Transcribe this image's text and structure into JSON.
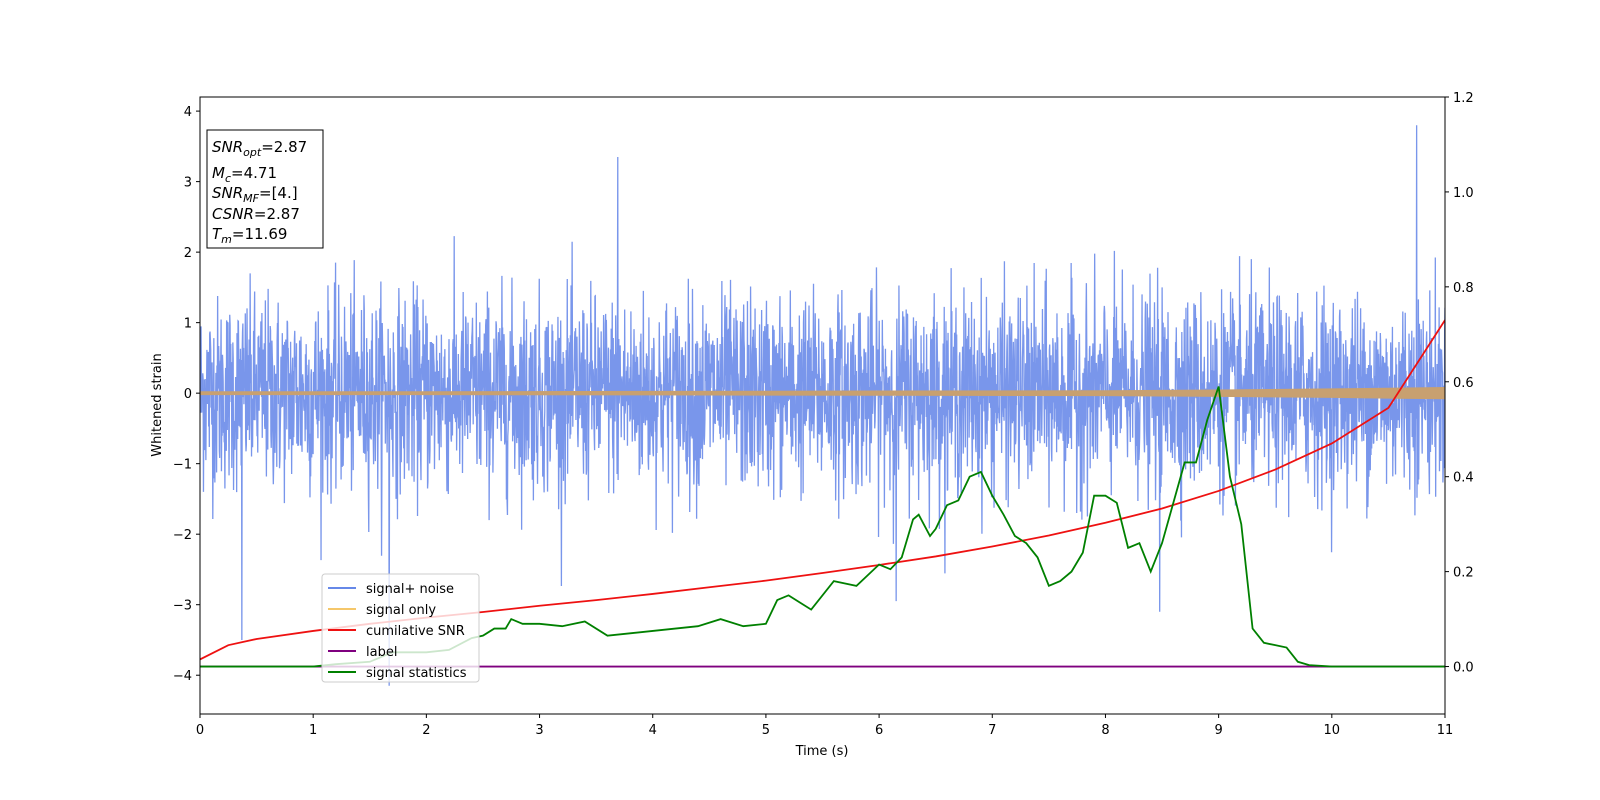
{
  "chart_data": {
    "type": "line",
    "xlabel": "Time (s)",
    "ylabel": "Whitened strain",
    "xlim": [
      0,
      11
    ],
    "ylim": [
      -4.55,
      4.2
    ],
    "y2lim": [
      -0.1,
      1.2
    ],
    "xticks": [
      0,
      1,
      2,
      3,
      4,
      5,
      6,
      7,
      8,
      9,
      10,
      11
    ],
    "yticks": [
      -4,
      -3,
      -2,
      -1,
      0,
      1,
      2,
      3,
      4
    ],
    "y2ticks": [
      0.0,
      0.2,
      0.4,
      0.6,
      0.8,
      1.0,
      1.2
    ],
    "xtick_labels": [
      "0",
      "1",
      "2",
      "3",
      "4",
      "5",
      "6",
      "7",
      "8",
      "9",
      "10",
      "11"
    ],
    "ytick_labels": [
      "−4",
      "−3",
      "−2",
      "−1",
      "0",
      "1",
      "2",
      "3",
      "4"
    ],
    "y2tick_labels": [
      "0.0",
      "0.2",
      "0.4",
      "0.6",
      "0.8",
      "1.0",
      "1.2"
    ],
    "info_box": {
      "snr_opt": "=2.87",
      "mc": "=4.71",
      "snr_mf": "=[4.]",
      "csnr": "=2.87",
      "tm": "=11.69"
    },
    "legend_position": "lower-left",
    "series": [
      {
        "name": "signal+ noise",
        "color": "#6688e8",
        "axis": "left",
        "description_values": "dense noise, approx. symmetric about 0",
        "peaks": [
          {
            "x": 0.37,
            "y": -3.5
          },
          {
            "x": 1.67,
            "y": -4.15
          },
          {
            "x": 3.69,
            "y": 3.35
          },
          {
            "x": 10.75,
            "y": 3.8
          },
          {
            "x": 8.48,
            "y": -3.1
          },
          {
            "x": 6.15,
            "y": -2.95
          }
        ],
        "envelope_upper": 2.1,
        "envelope_lower": -2.1
      },
      {
        "name": "signal only",
        "color": "#f5c76a",
        "axis": "left",
        "x": [
          0,
          2,
          4,
          6,
          8,
          9,
          10,
          10.5,
          11
        ],
        "amplitude": [
          0.02,
          0.02,
          0.025,
          0.03,
          0.035,
          0.045,
          0.06,
          0.07,
          0.08
        ]
      },
      {
        "name": "cumilative SNR",
        "color": "#ee1111",
        "axis": "right",
        "x": [
          0,
          0.25,
          0.5,
          1,
          1.5,
          2,
          2.5,
          3,
          3.5,
          4,
          4.5,
          5,
          5.5,
          6,
          6.5,
          7,
          7.5,
          8,
          8.5,
          9,
          9.5,
          10,
          10.5,
          11
        ],
        "values": [
          0.015,
          0.045,
          0.058,
          0.075,
          0.09,
          0.103,
          0.115,
          0.128,
          0.14,
          0.153,
          0.167,
          0.181,
          0.197,
          0.214,
          0.232,
          0.253,
          0.276,
          0.303,
          0.333,
          0.37,
          0.415,
          0.47,
          0.545,
          0.73
        ]
      },
      {
        "name": "label",
        "color": "#7f007f",
        "axis": "right",
        "x": [
          0,
          11
        ],
        "values": [
          0.0,
          0.0
        ]
      },
      {
        "name": "signal statistics",
        "color": "#008000",
        "axis": "right",
        "x": [
          0,
          1,
          1.2,
          1.5,
          1.7,
          2.0,
          2.2,
          2.4,
          2.5,
          2.6,
          2.7,
          2.75,
          2.85,
          3.0,
          3.2,
          3.4,
          3.6,
          3.8,
          4.0,
          4.2,
          4.4,
          4.6,
          4.8,
          5.0,
          5.1,
          5.2,
          5.3,
          5.4,
          5.6,
          5.8,
          6.0,
          6.1,
          6.2,
          6.3,
          6.35,
          6.45,
          6.5,
          6.6,
          6.7,
          6.8,
          6.9,
          7.0,
          7.1,
          7.2,
          7.3,
          7.4,
          7.5,
          7.6,
          7.7,
          7.8,
          7.9,
          8.0,
          8.1,
          8.2,
          8.3,
          8.4,
          8.5,
          8.6,
          8.7,
          8.8,
          8.9,
          9.0,
          9.1,
          9.2,
          9.3,
          9.4,
          9.5,
          9.6,
          9.7,
          9.8,
          10.0,
          10.5,
          11.0
        ],
        "values": [
          0.0,
          0.0,
          0.005,
          0.01,
          0.03,
          0.03,
          0.035,
          0.06,
          0.065,
          0.08,
          0.08,
          0.1,
          0.09,
          0.09,
          0.085,
          0.095,
          0.065,
          0.07,
          0.075,
          0.08,
          0.085,
          0.1,
          0.085,
          0.09,
          0.14,
          0.15,
          0.135,
          0.12,
          0.18,
          0.17,
          0.215,
          0.205,
          0.23,
          0.31,
          0.32,
          0.275,
          0.29,
          0.34,
          0.35,
          0.4,
          0.41,
          0.36,
          0.32,
          0.275,
          0.26,
          0.23,
          0.17,
          0.18,
          0.2,
          0.24,
          0.36,
          0.36,
          0.345,
          0.25,
          0.26,
          0.2,
          0.26,
          0.345,
          0.43,
          0.43,
          0.52,
          0.59,
          0.4,
          0.3,
          0.08,
          0.05,
          0.045,
          0.04,
          0.01,
          0.003,
          0.0,
          0.0,
          0.0
        ]
      }
    ]
  }
}
